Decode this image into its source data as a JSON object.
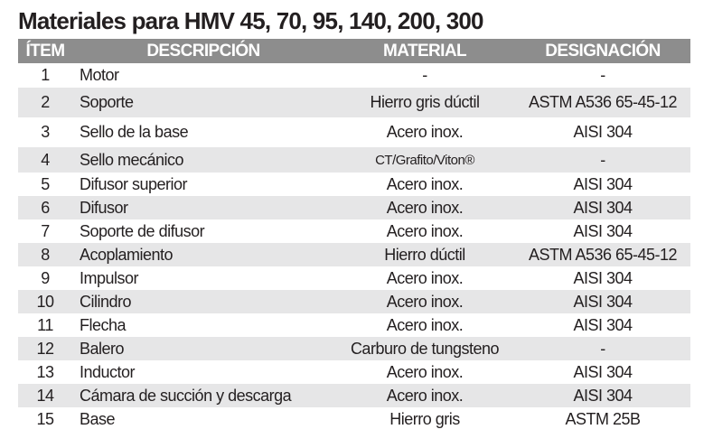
{
  "title": "Materiales para HMV 45, 70, 95, 140, 200, 300",
  "colors": {
    "header_bg": "#8d8d8d",
    "alt_row_bg": "#e6e6e7",
    "text": "#231f20"
  },
  "headers": [
    "ÍTEM",
    "DESCRIPCIÓN",
    "MATERIAL",
    "DESIGNACIÓN"
  ],
  "rows": [
    {
      "item": "1",
      "descripcion": "Motor",
      "material": "-",
      "designacion": "-"
    },
    {
      "item": "2",
      "descripcion": "Soporte",
      "material": "Hierro gris dúctil",
      "designacion": "ASTM A536 65-45-12"
    },
    {
      "item": "3",
      "descripcion": "Sello de la base",
      "material": "Acero inox.",
      "designacion": "AISI 304"
    },
    {
      "item": "4",
      "descripcion": "Sello mecánico",
      "material": "CT/Grafito/Viton®",
      "designacion": "-"
    },
    {
      "item": "5",
      "descripcion": "Difusor superior",
      "material": "Acero inox.",
      "designacion": "AISI 304"
    },
    {
      "item": "6",
      "descripcion": "Difusor",
      "material": "Acero inox.",
      "designacion": "AISI 304"
    },
    {
      "item": "7",
      "descripcion": "Soporte de difusor",
      "material": "Acero inox.",
      "designacion": "AISI 304"
    },
    {
      "item": "8",
      "descripcion": "Acoplamiento",
      "material": "Hierro dúctil",
      "designacion": "ASTM A536 65-45-12"
    },
    {
      "item": "9",
      "descripcion": "Impulsor",
      "material": "Acero inox.",
      "designacion": "AISI 304"
    },
    {
      "item": "10",
      "descripcion": "Cilindro",
      "material": "Acero inox.",
      "designacion": "AISI 304"
    },
    {
      "item": "11",
      "descripcion": "Flecha",
      "material": "Acero inox.",
      "designacion": "AISI 304"
    },
    {
      "item": "12",
      "descripcion": "Balero",
      "material": "Carburo de tungsteno",
      "designacion": "-"
    },
    {
      "item": "13",
      "descripcion": "Inductor",
      "material": "Acero inox.",
      "designacion": "AISI 304"
    },
    {
      "item": "14",
      "descripcion": "Cámara de succión y descarga",
      "material": "Acero inox.",
      "designacion": "AISI 304"
    },
    {
      "item": "15",
      "descripcion": "Base",
      "material": "Hierro gris",
      "designacion": "ASTM 25B"
    }
  ]
}
